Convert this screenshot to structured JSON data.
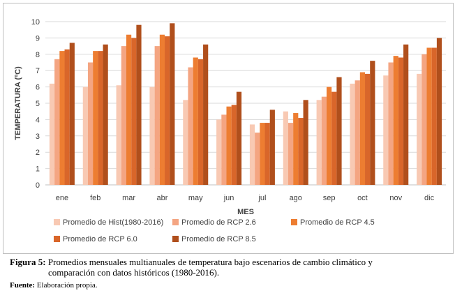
{
  "chart_data": {
    "type": "bar",
    "xlabel": "MES",
    "ylabel": "TEMPERATURA (ºC)",
    "ylim": [
      0,
      10
    ],
    "yticks": [
      "0",
      "1",
      "2",
      "3",
      "4",
      "5",
      "6",
      "7",
      "8",
      "9",
      "10"
    ],
    "grid": true,
    "legend_position": "bottom",
    "categories": [
      "ene",
      "feb",
      "mar",
      "abr",
      "may",
      "jun",
      "jul",
      "ago",
      "sep",
      "oct",
      "nov",
      "dic"
    ],
    "series": [
      {
        "name": "Promedio de Hist(1980-2016)",
        "color": "#f8c9b3",
        "values": [
          6.2,
          6.0,
          6.1,
          6.0,
          5.2,
          4.0,
          3.7,
          4.5,
          5.2,
          6.2,
          6.7,
          6.8
        ]
      },
      {
        "name": "Promedio de RCP 2.6",
        "color": "#f4a582",
        "values": [
          7.7,
          7.5,
          8.5,
          8.5,
          7.2,
          4.3,
          3.2,
          3.8,
          5.4,
          6.4,
          7.5,
          8.0
        ]
      },
      {
        "name": "Promedio de RCP 4.5",
        "color": "#ed7d31",
        "values": [
          8.2,
          8.2,
          9.2,
          9.2,
          7.8,
          4.8,
          3.8,
          4.4,
          6.0,
          6.9,
          7.9,
          8.4
        ]
      },
      {
        "name": "Promedio de RCP 6.0",
        "color": "#d9662a",
        "values": [
          8.3,
          8.2,
          9.0,
          9.1,
          7.7,
          4.9,
          3.8,
          4.1,
          5.7,
          6.8,
          7.8,
          8.4
        ]
      },
      {
        "name": "Promedio de RCP 8.5",
        "color": "#b04f1c",
        "values": [
          8.7,
          8.6,
          9.8,
          9.9,
          8.6,
          5.7,
          4.6,
          5.2,
          6.6,
          7.6,
          8.6,
          9.0
        ]
      }
    ]
  },
  "caption": {
    "label": "Figura 5:",
    "text": "Promedios mensuales multianuales de temperatura bajo escenarios de cambio climático y",
    "text_cont": "comparación con datos históricos (1980-2016)."
  },
  "source": {
    "label": "Fuente:",
    "text": "Elaboración propia."
  }
}
